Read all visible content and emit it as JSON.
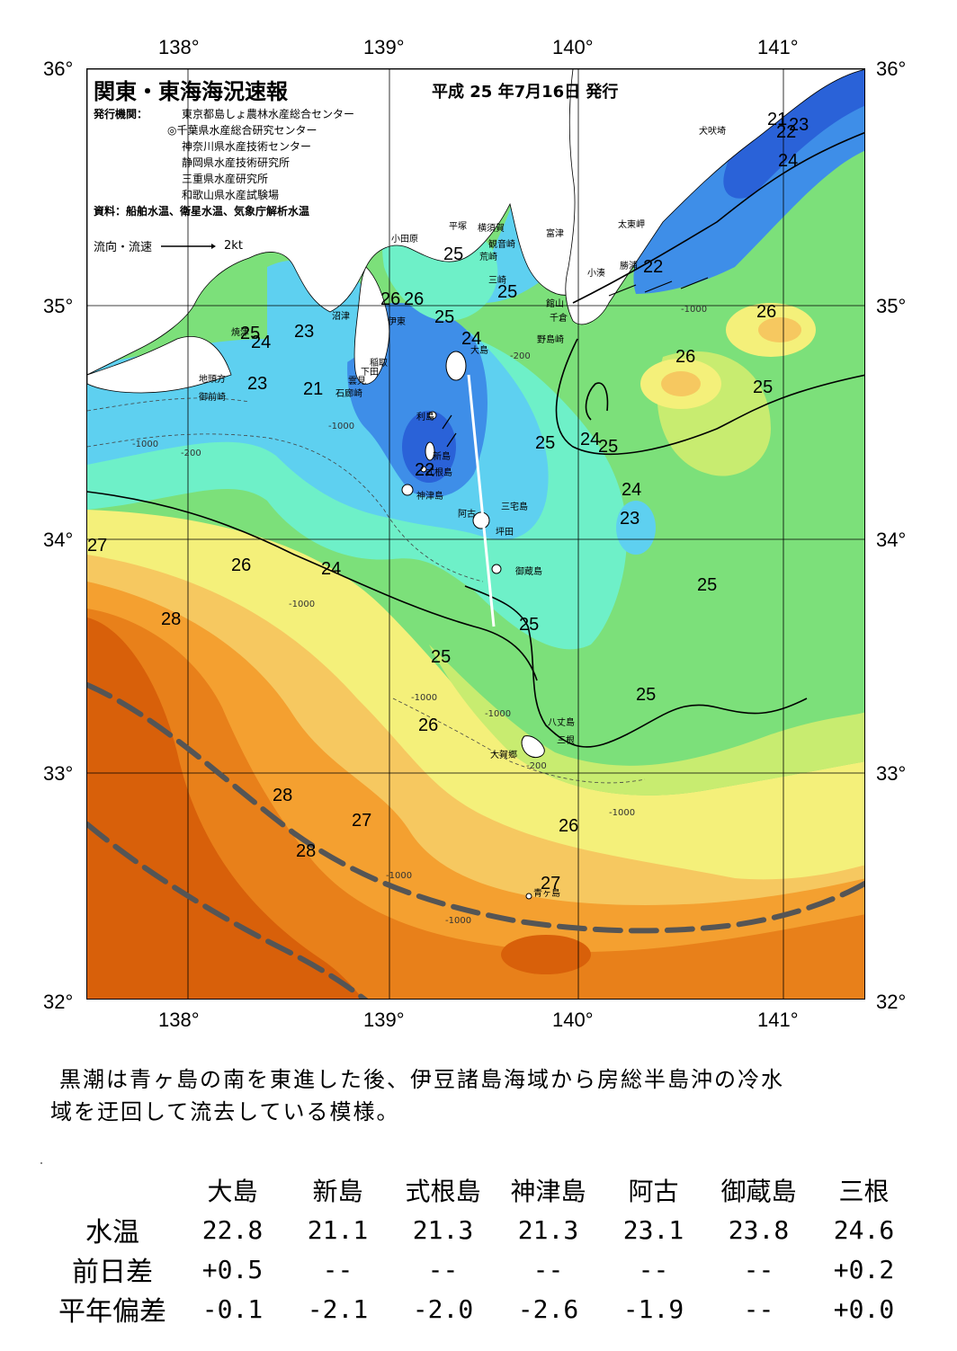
{
  "header": {
    "title": "関東・東海海況速報",
    "issue_date": "平成 25 年7月16日 発行",
    "publisher_label": "発行機関：",
    "publishers": [
      "東京都島しょ農林水産総合センター",
      "◎千葉県水産総合研究センター",
      "神奈川県水産技術センター",
      "静岡県水産技術研究所",
      "三重県水産研究所",
      "和歌山県水産試験場"
    ],
    "source_label": "資料：船舶水温、衛星水温、気象庁解析水温",
    "flow_legend_label": "流向・流速",
    "flow_legend_scale": "2kt"
  },
  "axes": {
    "lon_labels": [
      "138°",
      "139°",
      "140°",
      "141°"
    ],
    "lat_labels": [
      "36°",
      "35°",
      "34°",
      "33°",
      "32°"
    ]
  },
  "map": {
    "water_colors": {
      "cold_blue": "#2a62d8",
      "blue": "#3e8ee8",
      "cyan": "#5ed0f0",
      "aqua": "#6ef0c8",
      "green": "#7ce07a",
      "yellow_green": "#c8ec70",
      "yellow": "#f4f07a",
      "light_orange": "#f6c860",
      "orange": "#f4a030",
      "dark_orange": "#e8801a",
      "deep_orange": "#d8600a",
      "land": "#ffffff"
    },
    "isotherm_labels": [
      "21",
      "22",
      "23",
      "24",
      "25",
      "26",
      "27",
      "28"
    ],
    "depth_labels": [
      "-200",
      "-1000"
    ],
    "place_names": {
      "inubozaki": "犬吠埼",
      "taitomisaki": "太東岬",
      "katsuura": "勝浦",
      "kominato": "小湊",
      "futtsu": "富津",
      "tateyama": "館山",
      "chikura": "千倉",
      "nojimazaki": "野島崎",
      "kannonzaki": "観音崎",
      "yokosuka": "横須賀",
      "araisaki": "荒崎",
      "misaki": "三崎",
      "hiratsuka": "平塚",
      "odawara": "小田原",
      "numazu": "沼津",
      "ito": "伊東",
      "inatori": "稲取",
      "shimoda": "下田",
      "kumomi": "雲見",
      "irozaki": "石廊崎",
      "yaizu": "焼津",
      "jitogata": "地頭方",
      "omaezaki": "御前崎",
      "oshima": "大島",
      "toshima": "利島",
      "niijima": "新島",
      "shikinejima": "式根島",
      "kozushima": "神津島",
      "miyakejima": "三宅島",
      "ako": "阿古",
      "tsubota": "坪田",
      "mikurajima": "御蔵島",
      "hachijojima": "八丈島",
      "mitsune": "三根",
      "okago": "大賀郷",
      "aogashima": "青ヶ島"
    }
  },
  "comment": {
    "line1": "黒潮は青ヶ島の南を東進した後、伊豆諸島海域から房総半島沖の冷水",
    "line2": "域を迂回して流去している模様。"
  },
  "observations": {
    "stations": [
      "大島",
      "新島",
      "式根島",
      "神津島",
      "阿古",
      "御蔵島",
      "三根"
    ],
    "rows": [
      {
        "label": "水温",
        "values": [
          "22.8",
          "21.1",
          "21.3",
          "21.3",
          "23.1",
          "23.8",
          "24.6"
        ]
      },
      {
        "label": "前日差",
        "values": [
          "+0.5",
          "--",
          "--",
          "--",
          "--",
          "--",
          "+0.2"
        ]
      },
      {
        "label": "平年偏差",
        "values": [
          "-0.1",
          "-2.1",
          "-2.0",
          "-2.6",
          "-1.9",
          "--",
          "+0.0"
        ]
      }
    ]
  }
}
